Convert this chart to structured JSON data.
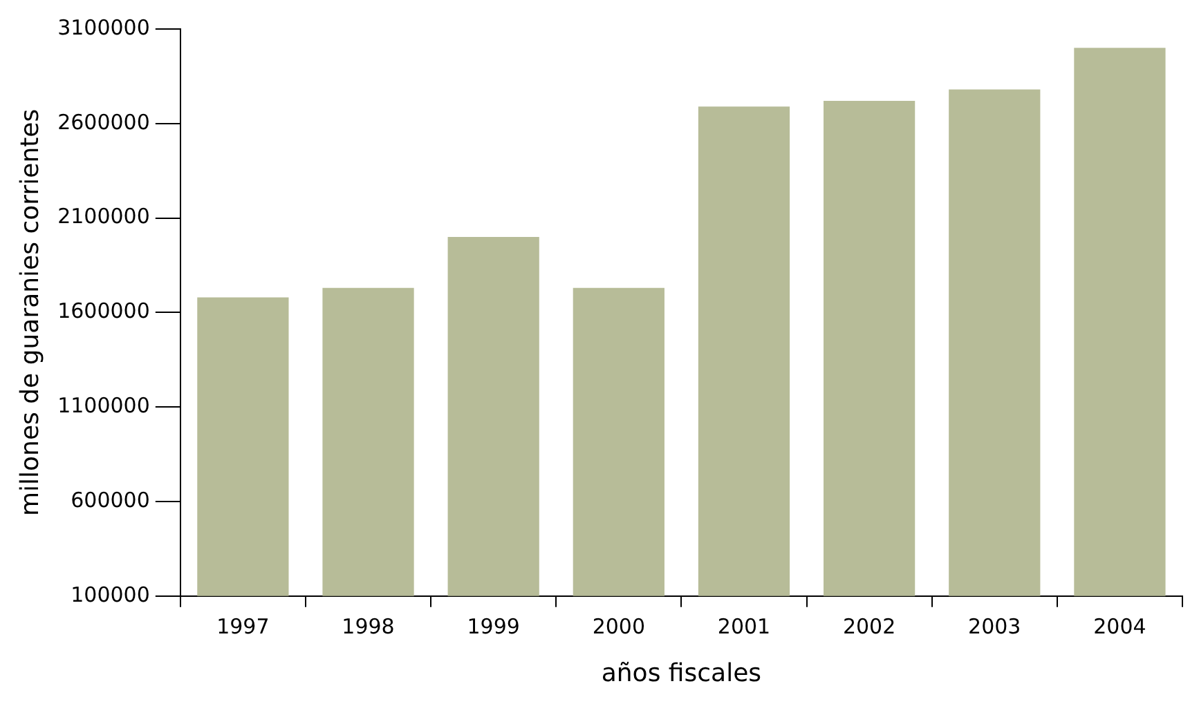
{
  "chart_data": {
    "type": "bar",
    "xlabel": "años fiscales",
    "ylabel": "millones de guaranies corrientes",
    "categories": [
      "1997",
      "1998",
      "1999",
      "2000",
      "2001",
      "2002",
      "2003",
      "2004"
    ],
    "values": [
      1680000,
      1730000,
      2000000,
      1730000,
      2690000,
      2720000,
      2780000,
      3000000
    ],
    "color": "#b7bc98",
    "ylim": [
      100000,
      3100000
    ],
    "yticks": [
      100000,
      600000,
      1100000,
      1600000,
      2100000,
      2600000,
      3100000
    ],
    "grid": false,
    "legend": false
  }
}
